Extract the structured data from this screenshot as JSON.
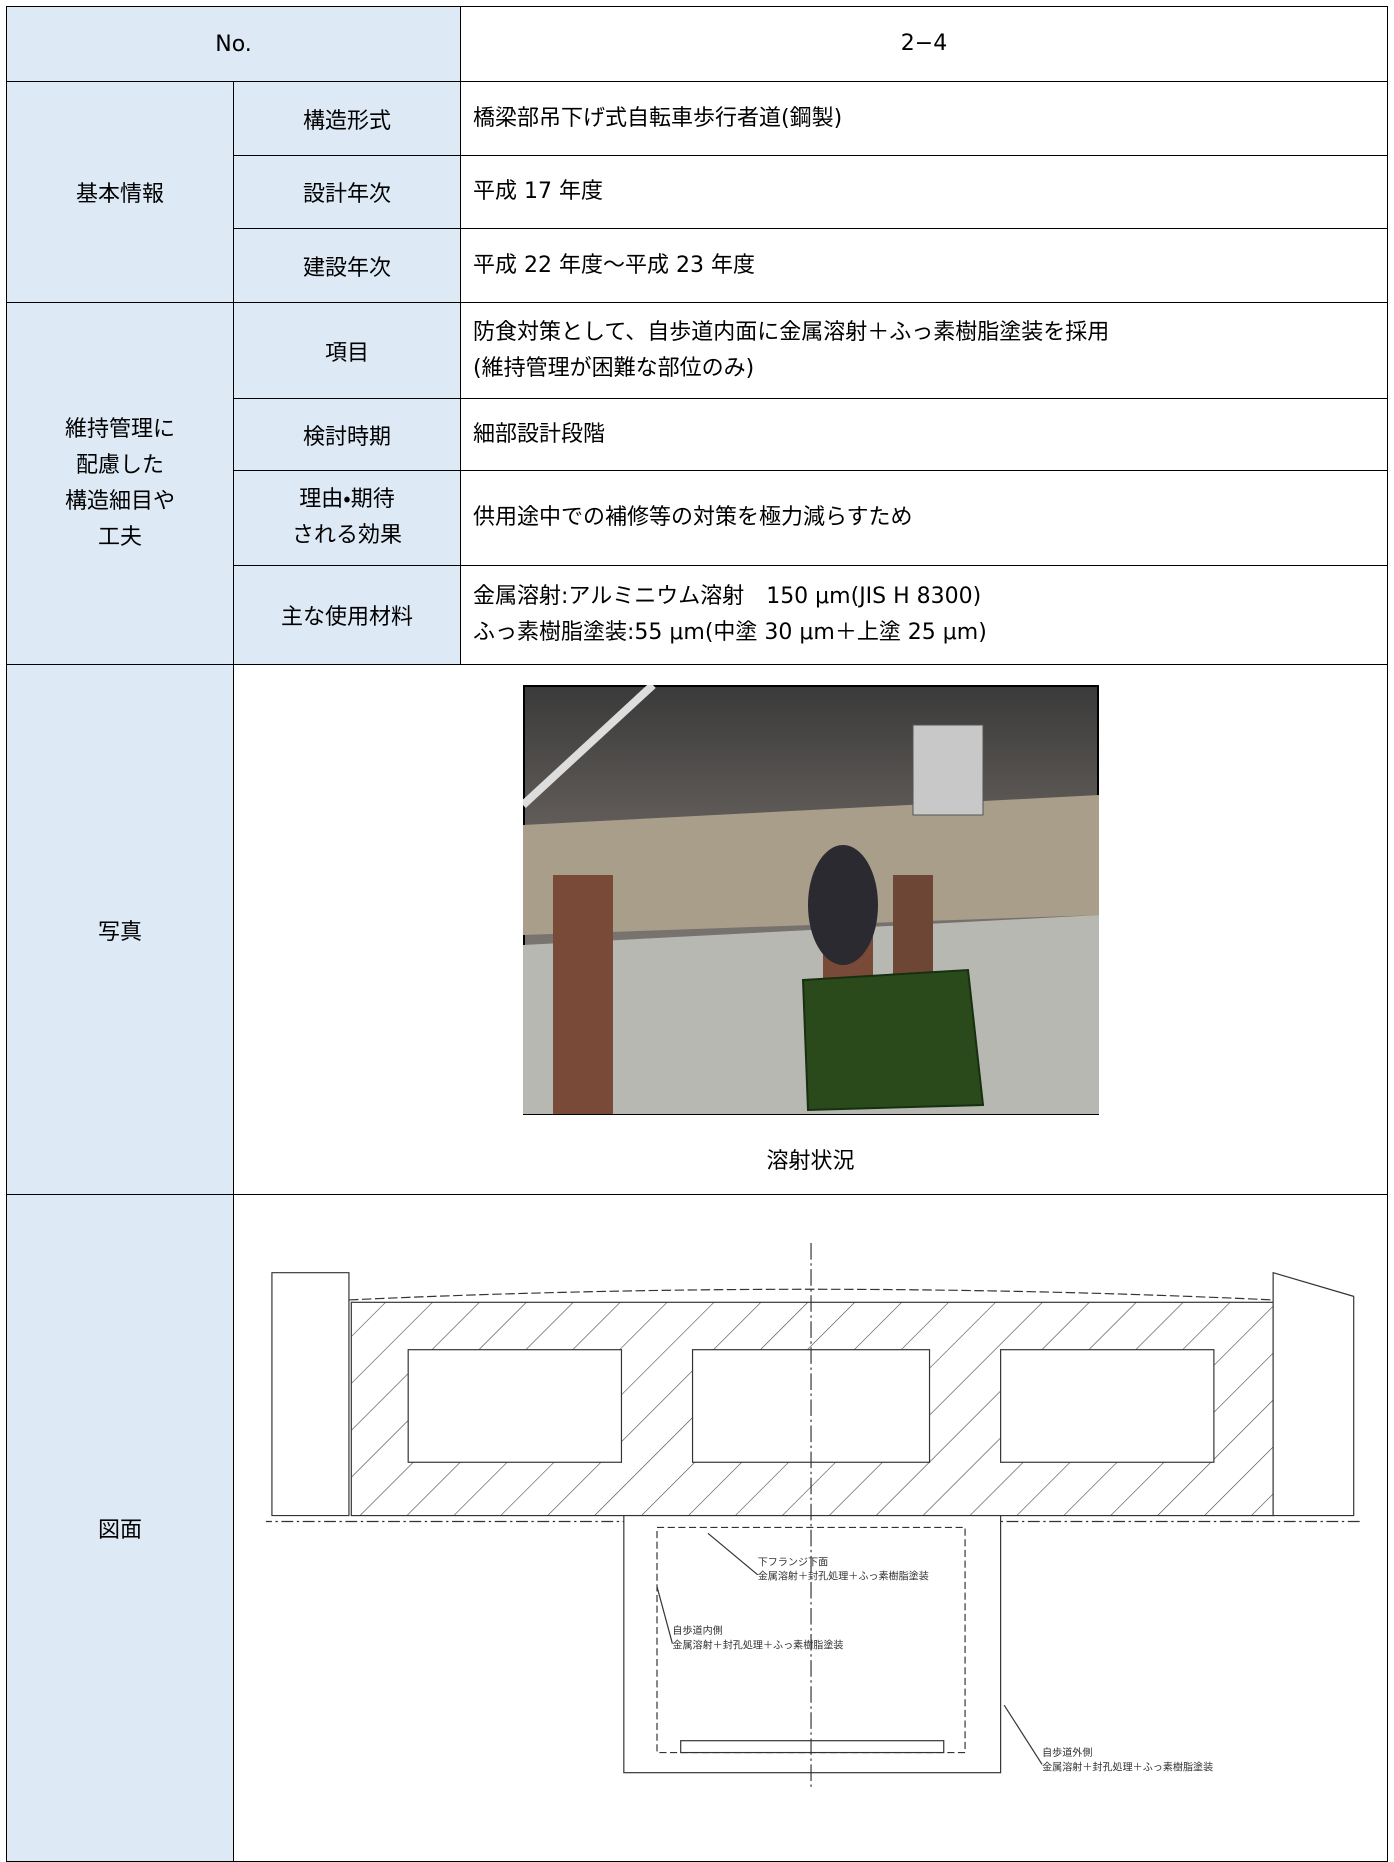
{
  "no": {
    "label": "No.",
    "value": "2−4"
  },
  "basic": {
    "label": "基本情報",
    "items": [
      {
        "item": "構造形式",
        "value": "橋梁部吊下げ式自転車歩行者道(鋼製)"
      },
      {
        "item": "設計年次",
        "value": "平成 17 年度"
      },
      {
        "item": "建設年次",
        "value": "平成 22 年度～平成 23 年度"
      }
    ]
  },
  "maintenance": {
    "label_lines": [
      "維持管理に",
      "配慮した",
      "構造細目や",
      "工夫"
    ],
    "items": [
      {
        "item_lines": [
          "項目"
        ],
        "value_lines": [
          "防食対策として、自歩道内面に金属溶射＋ふっ素樹脂塗装を採用",
          "(維持管理が困難な部位のみ)"
        ]
      },
      {
        "item_lines": [
          "検討時期"
        ],
        "value_lines": [
          "細部設計段階"
        ]
      },
      {
        "item_lines": [
          "理由・期待",
          "される効果"
        ],
        "value_lines": [
          "供用途中での補修等の対策を極力減らすため"
        ]
      },
      {
        "item_lines": [
          "主な使用材料"
        ],
        "value_lines": [
          "金属溶射:アルミニウム溶射　150 μm(JIS H 8300)",
          "ふっ素樹脂塗装:55 μm(中塗 30 μm＋上塗 25 μm)"
        ]
      }
    ]
  },
  "photo": {
    "label": "写真",
    "caption": "溶射状況"
  },
  "drawing": {
    "label": "図面",
    "annotations": [
      {
        "lines": [
          "下フランジ下面",
          "金属溶射＋封孔処理＋ふっ素樹脂塗装"
        ]
      },
      {
        "lines": [
          "自歩道内側",
          "金属溶射＋封孔処理＋ふっ素樹脂塗装"
        ]
      },
      {
        "lines": [
          "自歩道外側",
          "金属溶射＋封孔処理＋ふっ素樹脂塗装"
        ]
      }
    ]
  }
}
